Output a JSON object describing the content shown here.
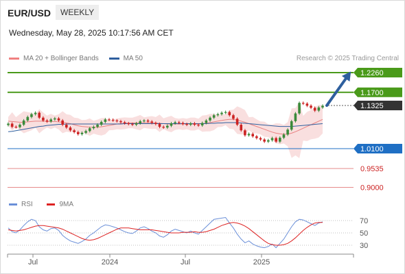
{
  "header": {
    "symbol": "EUR/USD",
    "timeframe": "WEEKLY",
    "datetime": "Wednesday, May 28, 2025 10:17:56 AM CET"
  },
  "legend": {
    "items": [
      {
        "label": "MA 20 + Bollinger Bands",
        "color": "#f08080"
      },
      {
        "label": "MA 50",
        "color": "#2e5f9e"
      }
    ],
    "copyright": "Research © 2025 Trading Central"
  },
  "rsi_legend": {
    "items": [
      {
        "label": "RSI",
        "color": "#6a8fd8"
      },
      {
        "label": "9MA",
        "color": "#dd2222"
      }
    ]
  },
  "colors": {
    "resistance": "#4a9a1a",
    "support": "#1f6fc4",
    "support_lower": "#e68a8a",
    "current": "#333333",
    "arrow": "#2e5f9e",
    "candle_up": "#3a8a3a",
    "candle_down": "#cc2222"
  },
  "chart_data": [
    {
      "type": "line",
      "title": "EUR/USD",
      "timeframe": "WEEKLY",
      "x_tick_labels": [
        "Jul",
        "2024",
        "Jul",
        "2025"
      ],
      "price_levels": [
        {
          "value": 1.226,
          "label": "1.2260",
          "kind": "resistance"
        },
        {
          "value": 1.17,
          "label": "1.1700",
          "kind": "resistance"
        },
        {
          "value": 1.1325,
          "label": "1.1325",
          "kind": "current"
        },
        {
          "value": 1.01,
          "label": "1.0100",
          "kind": "support"
        },
        {
          "value": 0.9535,
          "label": "0.9535",
          "kind": "support_lower"
        },
        {
          "value": 0.9,
          "label": "0.9000",
          "kind": "support_lower"
        }
      ],
      "series": [
        {
          "name": "Close",
          "values": [
            1.081,
            1.072,
            1.071,
            1.078,
            1.09,
            1.1,
            1.108,
            1.112,
            1.098,
            1.09,
            1.087,
            1.093,
            1.096,
            1.09,
            1.078,
            1.07,
            1.062,
            1.057,
            1.051,
            1.055,
            1.06,
            1.068,
            1.072,
            1.078,
            1.086,
            1.093,
            1.092,
            1.09,
            1.088,
            1.085,
            1.082,
            1.08,
            1.078,
            1.082,
            1.088,
            1.09,
            1.087,
            1.083,
            1.08,
            1.072,
            1.07,
            1.075,
            1.082,
            1.085,
            1.083,
            1.08,
            1.078,
            1.082,
            1.078,
            1.076,
            1.083,
            1.09,
            1.098,
            1.105,
            1.108,
            1.112,
            1.114,
            1.105,
            1.095,
            1.078,
            1.062,
            1.048,
            1.052,
            1.045,
            1.04,
            1.036,
            1.03,
            1.034,
            1.04,
            1.03,
            1.041,
            1.05,
            1.064,
            1.088,
            1.11,
            1.14,
            1.138,
            1.132,
            1.126,
            1.118,
            1.127,
            1.132
          ]
        },
        {
          "name": "MA 20",
          "values": [
            1.088,
            1.087,
            1.086,
            1.085,
            1.085,
            1.086,
            1.087,
            1.088,
            1.088,
            1.088,
            1.087,
            1.087,
            1.087,
            1.086,
            1.085,
            1.083,
            1.081,
            1.078,
            1.075,
            1.073,
            1.072,
            1.071,
            1.071,
            1.071,
            1.072,
            1.074,
            1.076,
            1.078,
            1.08,
            1.081,
            1.082,
            1.083,
            1.083,
            1.083,
            1.084,
            1.084,
            1.084,
            1.084,
            1.083,
            1.082,
            1.081,
            1.08,
            1.08,
            1.08,
            1.08,
            1.08,
            1.08,
            1.08,
            1.08,
            1.08,
            1.081,
            1.082,
            1.084,
            1.086,
            1.088,
            1.09,
            1.092,
            1.093,
            1.093,
            1.091,
            1.088,
            1.085,
            1.081,
            1.077,
            1.073,
            1.069,
            1.065,
            1.061,
            1.057,
            1.054,
            1.052,
            1.051,
            1.051,
            1.054,
            1.058,
            1.063,
            1.068,
            1.073,
            1.078,
            1.083,
            1.088,
            1.093
          ]
        },
        {
          "name": "MA 50",
          "values": [
            1.058,
            1.059,
            1.061,
            1.063,
            1.065,
            1.067,
            1.069,
            1.071,
            1.073,
            1.074,
            1.076,
            1.077,
            1.078,
            1.079,
            1.079,
            1.08,
            1.08,
            1.08,
            1.08,
            1.08,
            1.08,
            1.08,
            1.08,
            1.08,
            1.08,
            1.08,
            1.08,
            1.08,
            1.08,
            1.08,
            1.081,
            1.081,
            1.081,
            1.081,
            1.081,
            1.081,
            1.081,
            1.081,
            1.081,
            1.081,
            1.081,
            1.081,
            1.081,
            1.081,
            1.081,
            1.081,
            1.081,
            1.081,
            1.081,
            1.081,
            1.081,
            1.081,
            1.082,
            1.082,
            1.083,
            1.083,
            1.084,
            1.084,
            1.084,
            1.084,
            1.083,
            1.082,
            1.081,
            1.08,
            1.079,
            1.078,
            1.077,
            1.076,
            1.075,
            1.074,
            1.073,
            1.073,
            1.073,
            1.073,
            1.074,
            1.075,
            1.076,
            1.077,
            1.078,
            1.079,
            1.08,
            1.081
          ]
        }
      ],
      "projection": {
        "from": 1.1325,
        "to": 1.226
      }
    },
    {
      "type": "line",
      "title": "RSI",
      "y_tick_labels": [
        "70",
        "50",
        "30"
      ],
      "reference_levels": [
        70,
        50,
        30
      ],
      "series": [
        {
          "name": "RSI",
          "values": [
            58,
            52,
            50,
            55,
            62,
            68,
            72,
            70,
            60,
            55,
            53,
            57,
            58,
            54,
            46,
            41,
            37,
            35,
            33,
            36,
            40,
            46,
            50,
            55,
            60,
            63,
            62,
            60,
            58,
            55,
            52,
            50,
            49,
            53,
            58,
            60,
            57,
            53,
            50,
            45,
            43,
            47,
            53,
            56,
            54,
            52,
            50,
            53,
            50,
            48,
            54,
            60,
            66,
            72,
            73,
            74,
            75,
            66,
            58,
            48,
            40,
            34,
            37,
            32,
            29,
            27,
            26,
            28,
            32,
            26,
            33,
            40,
            50,
            60,
            68,
            72,
            71,
            68,
            65,
            62,
            66,
            68
          ]
        },
        {
          "name": "9MA",
          "values": [
            55,
            54,
            53,
            54,
            55,
            57,
            59,
            61,
            62,
            62,
            61,
            60,
            59,
            58,
            56,
            53,
            50,
            47,
            44,
            41,
            39,
            38,
            39,
            41,
            44,
            47,
            50,
            53,
            56,
            58,
            58,
            58,
            57,
            56,
            55,
            55,
            55,
            55,
            54,
            53,
            52,
            51,
            50,
            50,
            50,
            51,
            51,
            51,
            52,
            51,
            51,
            52,
            54,
            56,
            59,
            62,
            64,
            66,
            67,
            66,
            64,
            61,
            57,
            52,
            47,
            42,
            37,
            33,
            31,
            30,
            30,
            31,
            33,
            37,
            42,
            48,
            54,
            59,
            63,
            66,
            67,
            67
          ]
        }
      ]
    }
  ]
}
